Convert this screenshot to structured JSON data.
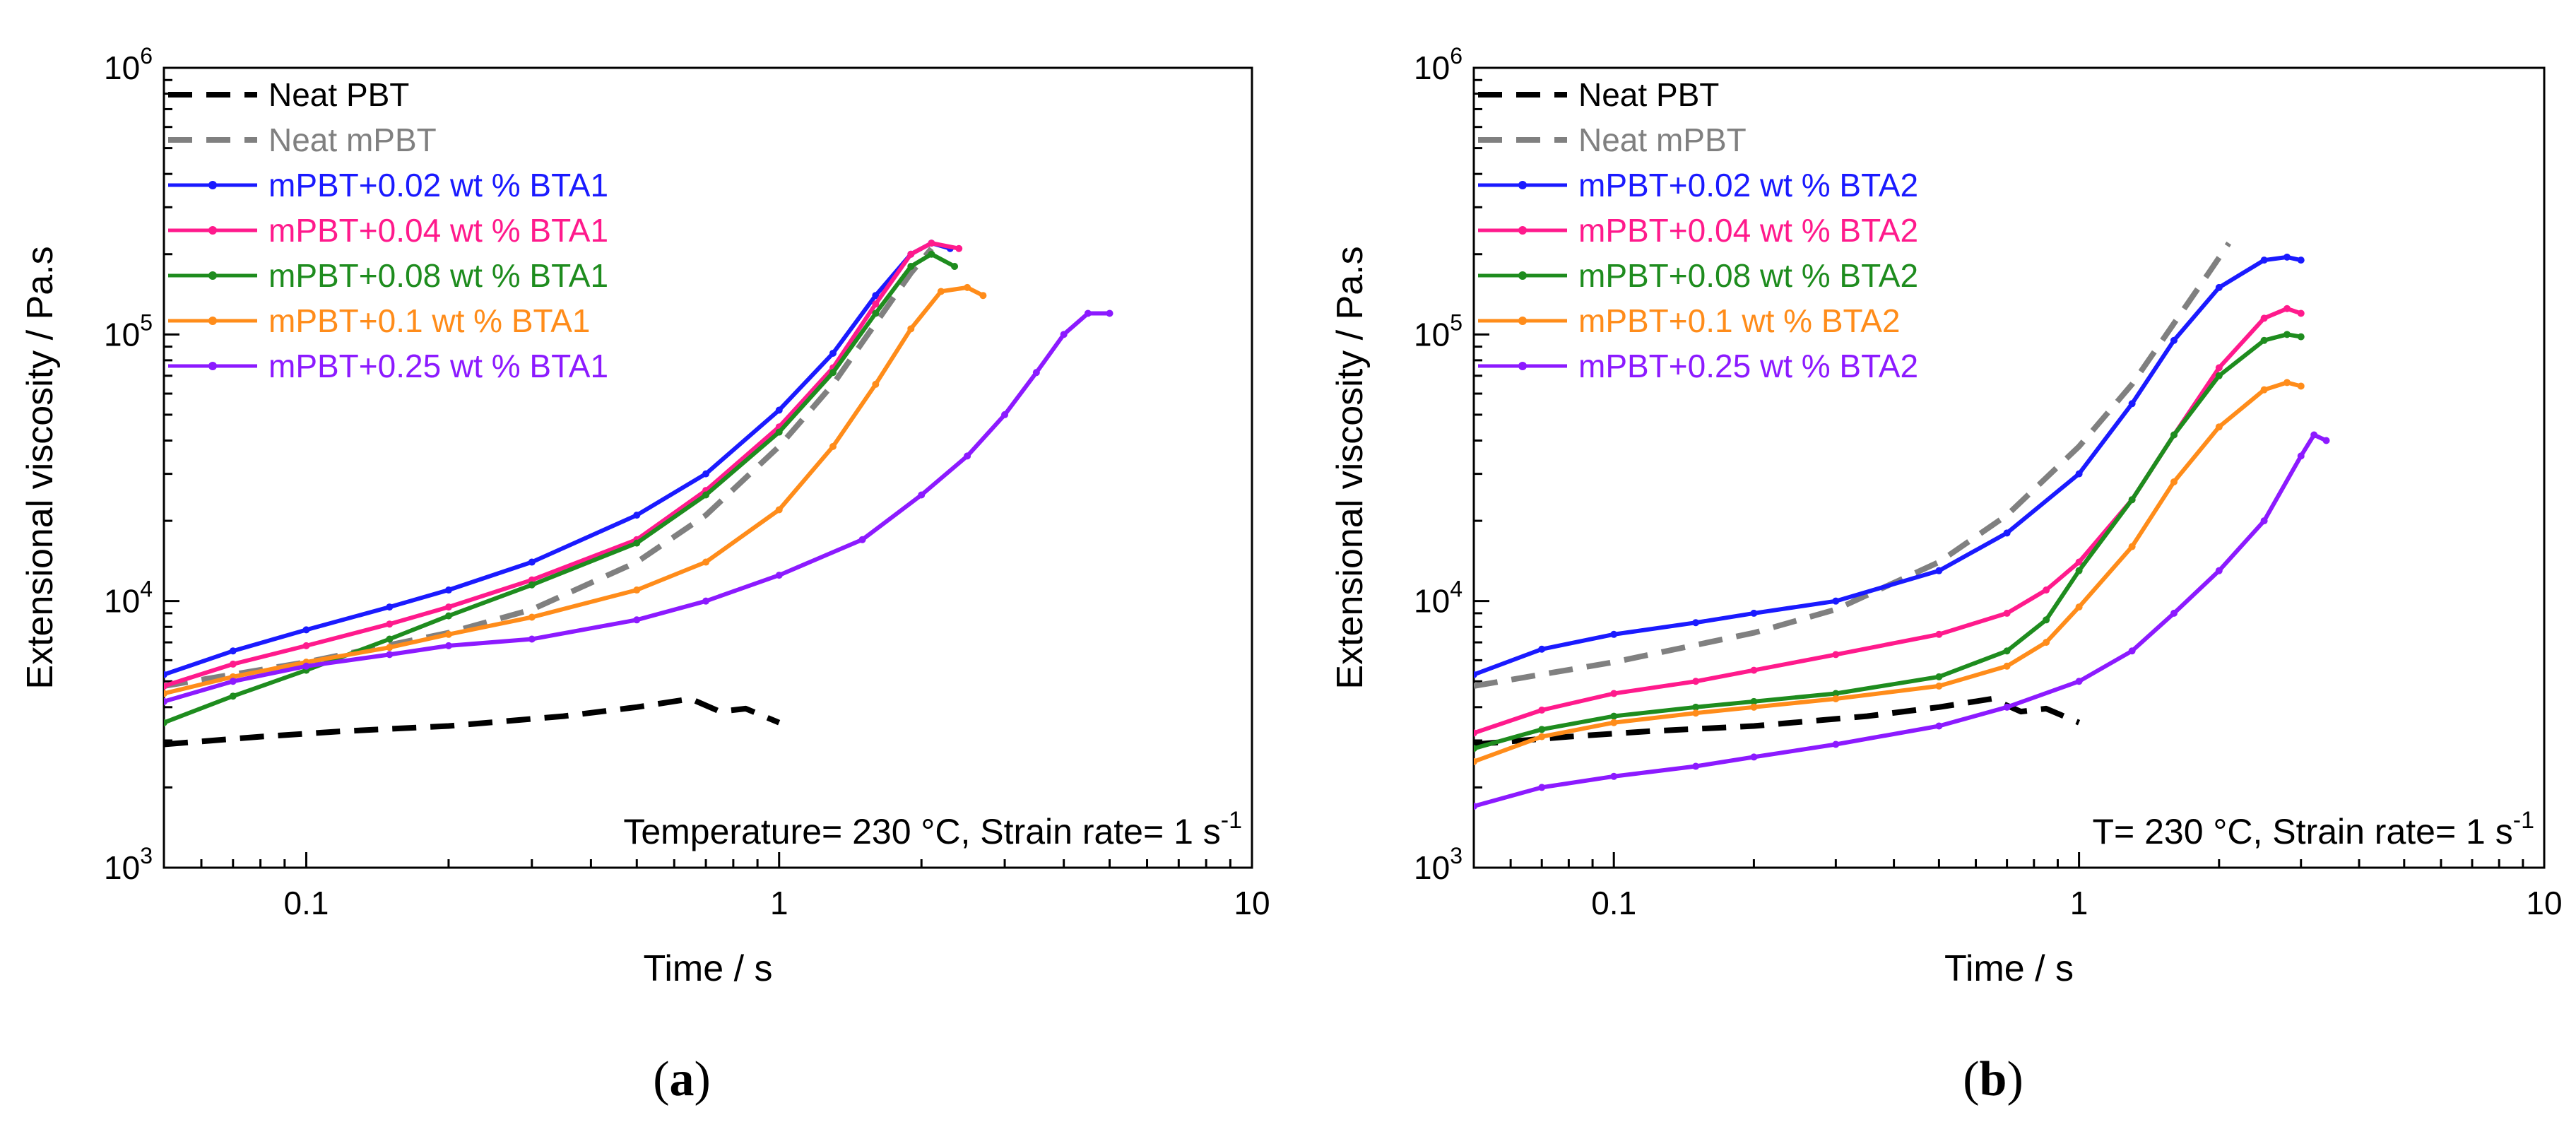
{
  "chart_data": [
    {
      "type": "line",
      "panel_label": "a",
      "xlabel": "Time / s",
      "ylabel": "Extensional viscosity / Pa.s",
      "xscale": "log",
      "yscale": "log",
      "xlim": [
        0.05,
        10
      ],
      "ylim": [
        1000,
        1000000
      ],
      "x_ticks": [
        {
          "value": 0.1,
          "label": "0.1"
        },
        {
          "value": 1,
          "label": "1"
        },
        {
          "value": 10,
          "label": "10"
        }
      ],
      "y_ticks": [
        {
          "value": 1000,
          "base": "10",
          "exp": "3"
        },
        {
          "value": 10000,
          "base": "10",
          "exp": "4"
        },
        {
          "value": 100000,
          "base": "10",
          "exp": "5"
        },
        {
          "value": 1000000,
          "base": "10",
          "exp": "6"
        }
      ],
      "annotation": {
        "text": "Temperature= 230 °C, Strain rate= 1 s",
        "sup": "-1"
      },
      "legend_position": "top-left",
      "series": [
        {
          "name": "Neat PBT",
          "color": "#000000",
          "style": "dashed",
          "x": [
            0.05,
            0.08,
            0.12,
            0.2,
            0.35,
            0.5,
            0.65,
            0.75,
            0.85,
            1.0
          ],
          "y": [
            2900,
            3100,
            3250,
            3400,
            3700,
            4000,
            4300,
            3850,
            3950,
            3500
          ]
        },
        {
          "name": "Neat mPBT",
          "color": "#808080",
          "style": "dashed",
          "x": [
            0.05,
            0.1,
            0.2,
            0.3,
            0.5,
            0.7,
            1.0,
            1.3,
            1.6,
            1.9,
            2.1
          ],
          "y": [
            4800,
            5900,
            7600,
            9300,
            14000,
            21000,
            38000,
            65000,
            110000,
            170000,
            210000
          ]
        },
        {
          "name": "mPBT+0.02 wt % BTA1",
          "color": "#1a1aff",
          "style": "solid",
          "x": [
            0.05,
            0.07,
            0.1,
            0.15,
            0.2,
            0.3,
            0.5,
            0.7,
            1.0,
            1.3,
            1.6,
            1.9,
            2.1,
            2.3
          ],
          "y": [
            5300,
            6500,
            7800,
            9500,
            11000,
            14000,
            21000,
            30000,
            52000,
            85000,
            140000,
            200000,
            220000,
            210000
          ]
        },
        {
          "name": "mPBT+0.04 wt % BTA1",
          "color": "#ff1a8c",
          "style": "solid",
          "x": [
            0.05,
            0.07,
            0.1,
            0.15,
            0.2,
            0.3,
            0.5,
            0.7,
            1.0,
            1.3,
            1.6,
            1.9,
            2.1,
            2.4
          ],
          "y": [
            4800,
            5800,
            6800,
            8200,
            9500,
            12000,
            17000,
            26000,
            45000,
            75000,
            130000,
            200000,
            220000,
            210000
          ]
        },
        {
          "name": "mPBT+0.08 wt % BTA1",
          "color": "#1e8c1e",
          "style": "solid",
          "x": [
            0.05,
            0.07,
            0.1,
            0.15,
            0.2,
            0.3,
            0.5,
            0.7,
            1.0,
            1.3,
            1.6,
            1.9,
            2.1,
            2.35
          ],
          "y": [
            3500,
            4400,
            5500,
            7200,
            8800,
            11500,
            16500,
            25000,
            43000,
            72000,
            120000,
            180000,
            200000,
            180000
          ]
        },
        {
          "name": "mPBT+0.1 wt % BTA1",
          "color": "#ff8c1a",
          "style": "solid",
          "x": [
            0.05,
            0.07,
            0.1,
            0.15,
            0.2,
            0.3,
            0.5,
            0.7,
            1.0,
            1.3,
            1.6,
            1.9,
            2.2,
            2.5,
            2.7
          ],
          "y": [
            4500,
            5200,
            5900,
            6700,
            7500,
            8700,
            11000,
            14000,
            22000,
            38000,
            65000,
            105000,
            145000,
            150000,
            140000
          ]
        },
        {
          "name": "mPBT+0.25 wt % BTA1",
          "color": "#8c1aff",
          "style": "solid",
          "x": [
            0.05,
            0.07,
            0.1,
            0.15,
            0.2,
            0.3,
            0.5,
            0.7,
            1.0,
            1.5,
            2.0,
            2.5,
            3.0,
            3.5,
            4.0,
            4.5,
            5.0
          ],
          "y": [
            4200,
            5000,
            5700,
            6300,
            6800,
            7200,
            8500,
            10000,
            12500,
            17000,
            25000,
            35000,
            50000,
            72000,
            100000,
            120000,
            120000
          ]
        }
      ]
    },
    {
      "type": "line",
      "panel_label": "b",
      "xlabel": "Time / s",
      "ylabel": "Extensional viscosity / Pa.s",
      "xscale": "log",
      "yscale": "log",
      "xlim": [
        0.05,
        10
      ],
      "ylim": [
        1000,
        1000000
      ],
      "x_ticks": [
        {
          "value": 0.1,
          "label": "0.1"
        },
        {
          "value": 1,
          "label": "1"
        },
        {
          "value": 10,
          "label": "10"
        }
      ],
      "y_ticks": [
        {
          "value": 1000,
          "base": "10",
          "exp": "3"
        },
        {
          "value": 10000,
          "base": "10",
          "exp": "4"
        },
        {
          "value": 100000,
          "base": "10",
          "exp": "5"
        },
        {
          "value": 1000000,
          "base": "10",
          "exp": "6"
        }
      ],
      "annotation": {
        "text": "T= 230 °C, Strain rate= 1 s",
        "sup": "-1"
      },
      "legend_position": "top-left",
      "series": [
        {
          "name": "Neat PBT",
          "color": "#000000",
          "style": "dashed",
          "x": [
            0.05,
            0.08,
            0.12,
            0.2,
            0.35,
            0.5,
            0.65,
            0.75,
            0.85,
            1.0
          ],
          "y": [
            2900,
            3100,
            3250,
            3400,
            3700,
            4000,
            4300,
            3850,
            3950,
            3500
          ]
        },
        {
          "name": "Neat mPBT",
          "color": "#808080",
          "style": "dashed",
          "x": [
            0.05,
            0.1,
            0.2,
            0.3,
            0.5,
            0.7,
            1.0,
            1.3,
            1.6,
            1.9,
            2.1
          ],
          "y": [
            4800,
            5900,
            7600,
            9300,
            14000,
            21000,
            38000,
            65000,
            110000,
            170000,
            220000
          ]
        },
        {
          "name": "mPBT+0.02 wt % BTA2",
          "color": "#1a1aff",
          "style": "solid",
          "x": [
            0.05,
            0.07,
            0.1,
            0.15,
            0.2,
            0.3,
            0.5,
            0.7,
            1.0,
            1.3,
            1.6,
            2.0,
            2.5,
            2.8,
            3.0
          ],
          "y": [
            5300,
            6600,
            7500,
            8300,
            9000,
            10000,
            13000,
            18000,
            30000,
            55000,
            95000,
            150000,
            190000,
            195000,
            190000
          ]
        },
        {
          "name": "mPBT+0.04 wt % BTA2",
          "color": "#ff1a8c",
          "style": "solid",
          "x": [
            0.05,
            0.07,
            0.1,
            0.15,
            0.2,
            0.3,
            0.5,
            0.7,
            0.85,
            1.0,
            1.3,
            1.6,
            2.0,
            2.5,
            2.8,
            3.0
          ],
          "y": [
            3200,
            3900,
            4500,
            5000,
            5500,
            6300,
            7500,
            9000,
            11000,
            14000,
            24000,
            42000,
            75000,
            115000,
            125000,
            120000
          ]
        },
        {
          "name": "mPBT+0.08 wt % BTA2",
          "color": "#1e8c1e",
          "style": "solid",
          "x": [
            0.05,
            0.07,
            0.1,
            0.15,
            0.2,
            0.3,
            0.5,
            0.7,
            0.85,
            1.0,
            1.3,
            1.6,
            2.0,
            2.5,
            2.8,
            3.0
          ],
          "y": [
            2800,
            3300,
            3700,
            4000,
            4200,
            4500,
            5200,
            6500,
            8500,
            13000,
            24000,
            42000,
            70000,
            95000,
            100000,
            98000
          ]
        },
        {
          "name": "mPBT+0.1 wt % BTA2",
          "color": "#ff8c1a",
          "style": "solid",
          "x": [
            0.05,
            0.07,
            0.1,
            0.15,
            0.2,
            0.3,
            0.5,
            0.7,
            0.85,
            1.0,
            1.3,
            1.6,
            2.0,
            2.5,
            2.8,
            3.0
          ],
          "y": [
            2500,
            3100,
            3500,
            3800,
            4000,
            4300,
            4800,
            5700,
            7000,
            9500,
            16000,
            28000,
            45000,
            62000,
            66000,
            64000
          ]
        },
        {
          "name": "mPBT+0.25 wt % BTA2",
          "color": "#8c1aff",
          "style": "solid",
          "x": [
            0.05,
            0.07,
            0.1,
            0.15,
            0.2,
            0.3,
            0.5,
            0.7,
            1.0,
            1.3,
            1.6,
            2.0,
            2.5,
            3.0,
            3.2,
            3.4
          ],
          "y": [
            1700,
            2000,
            2200,
            2400,
            2600,
            2900,
            3400,
            4000,
            5000,
            6500,
            9000,
            13000,
            20000,
            35000,
            42000,
            40000
          ]
        }
      ]
    }
  ]
}
